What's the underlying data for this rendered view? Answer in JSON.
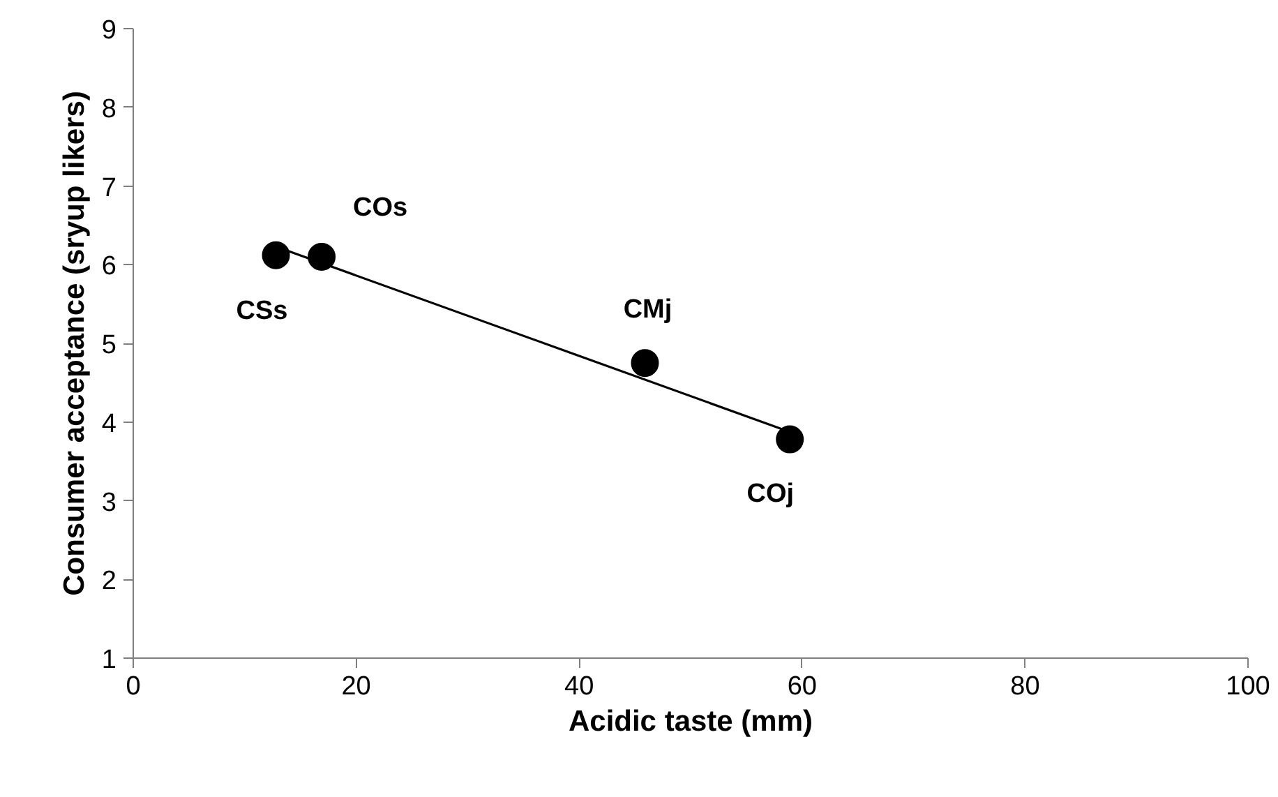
{
  "chart_data": {
    "type": "scatter",
    "xlabel": "Acidic taste (mm)",
    "ylabel": "Consumer acceptance (sryup likers)",
    "grid": false,
    "xlim": [
      0,
      100
    ],
    "xticks": [
      0,
      20,
      40,
      60,
      80,
      100
    ],
    "ylim": [
      1,
      9
    ],
    "yticks": [
      1,
      2,
      3,
      4,
      5,
      6,
      7,
      8,
      9
    ],
    "series": [
      {
        "color": "#000000",
        "marker": "circle",
        "x": [
          12.8,
          16.9,
          45.9,
          58.9
        ],
        "values": [
          6.12,
          6.1,
          4.75,
          3.78
        ]
      },
      {
        "type": "line",
        "color": "#000000",
        "marker": "none",
        "x": [
          13,
          59
        ],
        "values": [
          6.22,
          3.87
        ]
      }
    ],
    "annotations": [
      {
        "text": "CSs",
        "x": 12.8,
        "y": 6.12
      },
      {
        "text": "COs",
        "x": 16.9,
        "y": 6.1
      },
      {
        "text": "CMj",
        "x": 45.9,
        "y": 4.75
      },
      {
        "text": "COj",
        "x": 58.9,
        "y": 3.78
      }
    ]
  }
}
